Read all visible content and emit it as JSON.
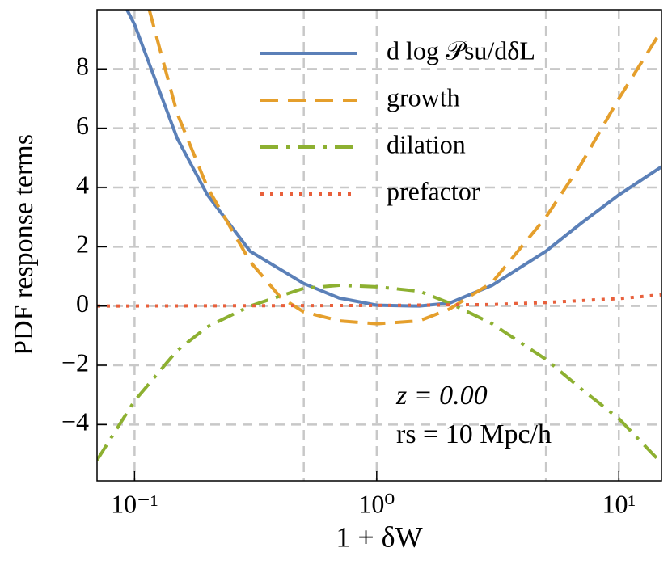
{
  "chart_data": {
    "type": "line",
    "xlabel": "1 + δW",
    "ylabel": "PDF response terms",
    "xscale": "log",
    "xlim": [
      0.07,
      15
    ],
    "ylim": [
      -5.9,
      10
    ],
    "xticks": [
      {
        "value": 0.1,
        "label": "10⁻¹"
      },
      {
        "value": 1,
        "label": "10⁰"
      },
      {
        "value": 10,
        "label": "10¹"
      }
    ],
    "xgrid": [
      0.1,
      0.5,
      1,
      5,
      10
    ],
    "yticks": [
      {
        "value": -4,
        "label": "−4"
      },
      {
        "value": -2,
        "label": "−2"
      },
      0,
      2,
      4,
      6,
      8
    ],
    "grid": true,
    "legend": "upper right",
    "annotations": [
      "z = 0.00",
      "rs = 10 Mpc/h"
    ],
    "series": [
      {
        "name": "d log 𝒫su/dδL",
        "color": "#5b80b8",
        "style": "solid",
        "x": [
          0.093,
          0.1,
          0.15,
          0.2,
          0.3,
          0.5,
          0.7,
          1,
          1.5,
          2,
          3,
          5,
          7,
          10,
          15
        ],
        "values": [
          10,
          9.5,
          5.66,
          3.75,
          1.85,
          0.76,
          0.27,
          0.03,
          0.0,
          0.1,
          0.7,
          1.85,
          2.8,
          3.75,
          4.7
        ]
      },
      {
        "name": "growth",
        "color": "#e59f2c",
        "style": "dashed",
        "x": [
          0.115,
          0.15,
          0.2,
          0.3,
          0.4,
          0.5,
          0.7,
          1,
          1.5,
          2,
          3,
          5,
          7,
          10,
          15
        ],
        "values": [
          10,
          6.5,
          4.0,
          1.5,
          0.3,
          -0.2,
          -0.5,
          -0.6,
          -0.5,
          -0.1,
          0.8,
          3.0,
          4.8,
          7.0,
          9.3
        ]
      },
      {
        "name": "dilation",
        "color": "#8db031",
        "style": "dashdot",
        "x": [
          0.07,
          0.1,
          0.15,
          0.2,
          0.3,
          0.5,
          0.7,
          1,
          1.5,
          2,
          3,
          5,
          7,
          10,
          15
        ],
        "values": [
          -5.2,
          -3.2,
          -1.5,
          -0.7,
          0.0,
          0.6,
          0.7,
          0.65,
          0.5,
          0.1,
          -0.6,
          -1.8,
          -2.8,
          -3.8,
          -5.3
        ]
      },
      {
        "name": "prefactor",
        "color": "#e8603c",
        "style": "dotted",
        "x": [
          0.07,
          1,
          3,
          5,
          10,
          15
        ],
        "values": [
          0,
          0.02,
          0.05,
          0.12,
          0.25,
          0.38
        ]
      }
    ]
  }
}
